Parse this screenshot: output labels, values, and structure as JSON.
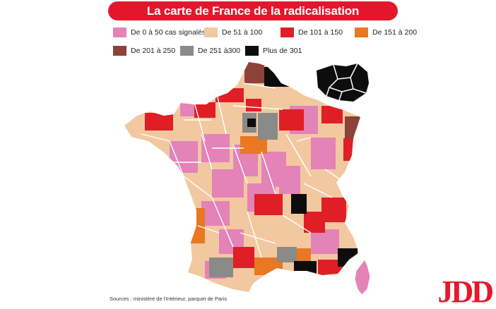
{
  "title": "La carte de France de la radicalisation",
  "colors": {
    "title_bg": "#e3172b",
    "border": "#ffffff",
    "sea": "#ffffff"
  },
  "legend": [
    {
      "label": "De 0 à 50 cas signalés",
      "color": "#e383b8"
    },
    {
      "label": "De 51 à 100",
      "color": "#f2c8a0"
    },
    {
      "label": "De 101 à 150",
      "color": "#e01e26"
    },
    {
      "label": "De 151 à 200",
      "color": "#ea7722"
    },
    {
      "label": "De 201 à 250",
      "color": "#8c4239"
    },
    {
      "label": "De 251 à300",
      "color": "#8a8a88"
    },
    {
      "label": "Plus de 301",
      "color": "#0d0d0d"
    }
  ],
  "sources": "Sources : ministère de l'Intérieur, parquet de Paris",
  "logo": "JDD"
}
